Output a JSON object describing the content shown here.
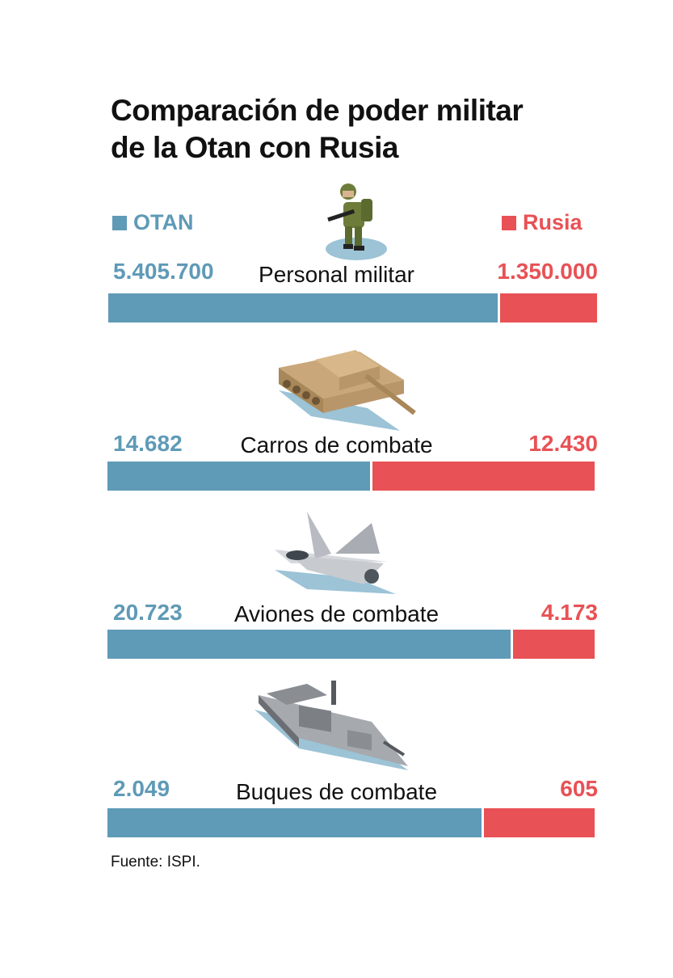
{
  "title_line1": "Comparación de poder militar",
  "title_line2": "de la Otan con Rusia",
  "colors": {
    "otan": "#5F9AB7",
    "rusia": "#E85155"
  },
  "legend": {
    "otan": "OTAN",
    "rusia": "Rusia"
  },
  "chart_data": {
    "type": "bar",
    "orientation": "horizontal-stacked-share",
    "categories": [
      "Personal militar",
      "Carros de combate",
      "Aviones de combate",
      "Buques de combate"
    ],
    "series": [
      {
        "name": "OTAN",
        "values": [
          5405700,
          14682,
          20723,
          2049
        ]
      },
      {
        "name": "Rusia",
        "values": [
          1350000,
          12430,
          4173,
          605
        ]
      }
    ],
    "value_labels": {
      "otan": [
        "5.405.700",
        "14.682",
        "20.723",
        "2.049"
      ],
      "rusia": [
        "1.350.000",
        "12.430",
        "4.173",
        "605"
      ]
    },
    "icons": [
      "soldier-icon",
      "tank-icon",
      "fighter-jet-icon",
      "warship-icon"
    ],
    "legend_position": "top"
  },
  "source": "Fuente: ISPI."
}
